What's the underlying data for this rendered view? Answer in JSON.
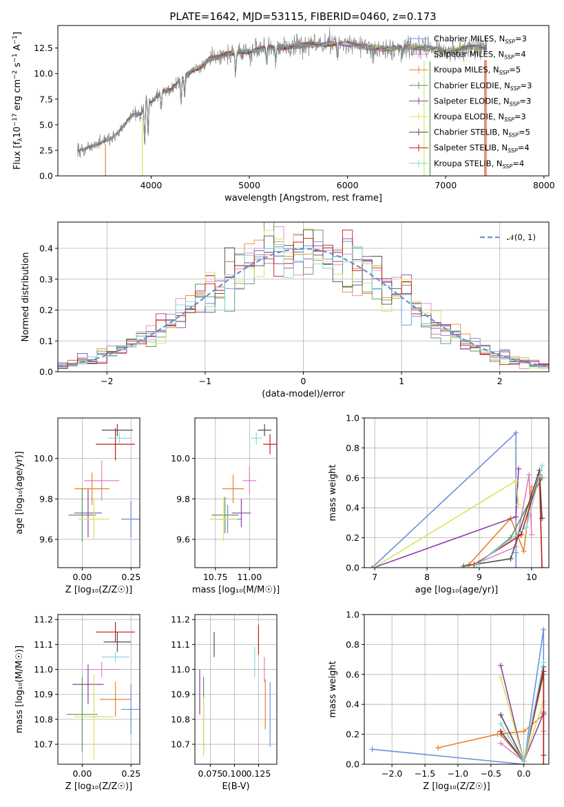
{
  "figure_title": "PLATE=1642, MJD=53115, FIBERID=0460, z=0.173",
  "chart_data": [
    {
      "id": "spectrum",
      "type": "line",
      "xlabel": "wavelength [Angstrom, rest frame]",
      "ylabel": "Flux [f_λ10^{-17} erg cm^{-2} s^{-1} A^{-1}]",
      "xlim": [
        3050,
        8050
      ],
      "ylim": [
        0,
        14.7
      ],
      "xticks": [
        4000,
        5000,
        6000,
        7000,
        8000
      ],
      "yticks": [
        0.0,
        2.5,
        5.0,
        7.5,
        10.0,
        12.5
      ],
      "grid": false,
      "legend_position": "top-right",
      "data_color": "#808080",
      "continuum": {
        "x": [
          3250,
          3400,
          3500,
          3600,
          3700,
          3800,
          3900,
          3950,
          4000,
          4100,
          4200,
          4300,
          4400,
          4500,
          4600,
          4700,
          4800,
          4900,
          5000,
          5200,
          5400,
          5600,
          5800,
          6000,
          6200,
          6400,
          6600,
          6800,
          7000,
          7200,
          7420
        ],
        "y": [
          2.4,
          2.9,
          3.3,
          3.7,
          4.6,
          5.9,
          6.1,
          7.6,
          7.2,
          8.2,
          8.4,
          9.4,
          10.2,
          10.6,
          11.5,
          11.6,
          12.0,
          12.2,
          12.1,
          12.6,
          12.6,
          12.8,
          12.9,
          12.9,
          12.6,
          12.4,
          12.6,
          12.5,
          12.2,
          12.5,
          12.6
        ]
      },
      "series": [
        {
          "name": "Chabrier MILES, N_{SSP}=3",
          "color": "#6a8fd8"
        },
        {
          "name": "Salpeter MILES, N_{SSP}=4",
          "color": "#e07fc2"
        },
        {
          "name": "Kroupa MILES, N_{SSP}=5",
          "color": "#e8812a"
        },
        {
          "name": "Chabrier ELODIE, N_{SSP}=3",
          "color": "#5e9160"
        },
        {
          "name": "Salpeter ELODIE, N_{SSP}=3",
          "color": "#8e3ea6"
        },
        {
          "name": "Kroupa ELODIE, N_{SSP}=3",
          "color": "#d4e45a"
        },
        {
          "name": "Chabrier STELIB, N_{SSP}=5",
          "color": "#4d4d4d"
        },
        {
          "name": "Salpeter STELIB, N_{SSP}=4",
          "color": "#c41818"
        },
        {
          "name": "Kroupa STELIB, N_{SSP}=4",
          "color": "#7fd8dc"
        }
      ]
    },
    {
      "id": "residuals",
      "type": "step-histogram",
      "xlabel": "(data-model)/error",
      "ylabel": "Normed distribution",
      "xlim": [
        -2.5,
        2.5
      ],
      "ylim": [
        0,
        0.485
      ],
      "xticks": [
        -2,
        -1,
        0,
        1,
        2
      ],
      "yticks": [
        0.0,
        0.1,
        0.2,
        0.3,
        0.4
      ],
      "grid": true,
      "legend_position": "top-right",
      "gaussian": {
        "name": "𝒩(0, 1)",
        "mu": 0,
        "sigma": 1,
        "color": "#6a8fd8"
      },
      "bin_width": 0.1
    },
    {
      "id": "age-vs-Z",
      "type": "errorbar",
      "xlabel": "Z [log₁₀(Z/Z☉)]",
      "ylabel": "age  [log₁₀(age/yr)]",
      "xlim": [
        -0.125,
        0.295
      ],
      "ylim": [
        9.46,
        10.2
      ],
      "xticks": [
        0.0,
        0.25
      ],
      "yticks": [
        9.6,
        9.8,
        10.0
      ],
      "grid": true,
      "points": [
        {
          "x": 0.25,
          "xerr": 0.05,
          "y": 9.7,
          "yerr": 0.09,
          "color": "#6a8fd8"
        },
        {
          "x": 0.1,
          "xerr": 0.09,
          "y": 9.89,
          "yerr": 0.1,
          "color": "#e07fc2"
        },
        {
          "x": 0.05,
          "xerr": 0.09,
          "y": 9.85,
          "yerr": 0.08,
          "color": "#e8812a"
        },
        {
          "x": 0.0,
          "xerr": 0.07,
          "y": 9.72,
          "yerr": 0.13,
          "color": "#5e9160"
        },
        {
          "x": 0.03,
          "xerr": 0.07,
          "y": 9.73,
          "yerr": 0.12,
          "color": "#8e3ea6"
        },
        {
          "x": 0.06,
          "xerr": 0.08,
          "y": 9.7,
          "yerr": 0.1,
          "color": "#d4e45a"
        },
        {
          "x": 0.18,
          "xerr": 0.08,
          "y": 10.14,
          "yerr": 0.03,
          "color": "#4d4d4d"
        },
        {
          "x": 0.17,
          "xerr": 0.1,
          "y": 10.07,
          "yerr": 0.08,
          "color": "#c41818"
        },
        {
          "x": 0.19,
          "xerr": 0.06,
          "y": 10.1,
          "yerr": 0.03,
          "color": "#7fd8dc"
        }
      ]
    },
    {
      "id": "age-vs-mass",
      "type": "errorbar",
      "xlabel": "mass [log₁₀(M/M☉)]",
      "ylabel": "",
      "xlim": [
        10.6,
        11.2
      ],
      "ylim": [
        9.46,
        10.2
      ],
      "xticks": [
        10.75,
        11.0
      ],
      "yticks": [
        9.6,
        9.8,
        10.0
      ],
      "grid": true,
      "points": [
        {
          "x": 10.84,
          "xerr": 0.1,
          "y": 9.7,
          "yerr": 0.07,
          "color": "#6a8fd8"
        },
        {
          "x": 11.0,
          "xerr": 0.05,
          "y": 9.89,
          "yerr": 0.07,
          "color": "#e07fc2"
        },
        {
          "x": 10.88,
          "xerr": 0.08,
          "y": 9.85,
          "yerr": 0.07,
          "color": "#e8812a"
        },
        {
          "x": 10.82,
          "xerr": 0.1,
          "y": 9.72,
          "yerr": 0.09,
          "color": "#5e9160"
        },
        {
          "x": 10.94,
          "xerr": 0.07,
          "y": 9.73,
          "yerr": 0.07,
          "color": "#8e3ea6"
        },
        {
          "x": 10.81,
          "xerr": 0.1,
          "y": 9.7,
          "yerr": 0.11,
          "color": "#d4e45a"
        },
        {
          "x": 11.11,
          "xerr": 0.05,
          "y": 10.14,
          "yerr": 0.03,
          "color": "#4d4d4d"
        },
        {
          "x": 11.15,
          "xerr": 0.05,
          "y": 10.07,
          "yerr": 0.05,
          "color": "#c41818"
        },
        {
          "x": 11.05,
          "xerr": 0.04,
          "y": 10.1,
          "yerr": 0.03,
          "color": "#7fd8dc"
        }
      ]
    },
    {
      "id": "weight-vs-age",
      "type": "line",
      "xlabel": "age  [log₁₀(age/yr)]",
      "ylabel": "mass weight",
      "xlim": [
        6.8,
        10.33
      ],
      "ylim": [
        0,
        1.0
      ],
      "xticks": [
        7,
        8,
        9,
        10
      ],
      "yticks": [
        0.0,
        0.2,
        0.4,
        0.6,
        0.8,
        1.0
      ],
      "grid": true,
      "series": [
        {
          "color": "#6a8fd8",
          "x": [
            6.95,
            9.7,
            9.7,
            9.7
          ],
          "y": [
            0.0,
            0.9,
            0.1,
            0.0
          ]
        },
        {
          "color": "#e07fc2",
          "x": [
            8.9,
            9.7,
            9.95,
            10.0
          ],
          "y": [
            0.02,
            0.14,
            0.62,
            0.22
          ]
        },
        {
          "color": "#e8812a",
          "x": [
            8.8,
            9.6,
            9.85,
            10.0
          ],
          "y": [
            0.02,
            0.33,
            0.11,
            0.54
          ]
        },
        {
          "color": "#5e9160",
          "x": [
            8.95,
            9.6,
            10.2
          ],
          "y": [
            0.02,
            0.2,
            0.6
          ]
        },
        {
          "color": "#8e3ea6",
          "x": [
            6.98,
            9.7,
            9.75
          ],
          "y": [
            0.0,
            0.34,
            0.66
          ]
        },
        {
          "color": "#d4e45a",
          "x": [
            6.98,
            9.7,
            9.75
          ],
          "y": [
            0.0,
            0.58,
            0.42
          ]
        },
        {
          "color": "#4d4d4d",
          "x": [
            8.7,
            9.6,
            10.15,
            10.2
          ],
          "y": [
            0.01,
            0.06,
            0.65,
            0.33
          ]
        },
        {
          "color": "#c41818",
          "x": [
            8.9,
            9.8,
            10.15,
            10.2
          ],
          "y": [
            0.02,
            0.22,
            0.62,
            0.0
          ]
        },
        {
          "color": "#7fd8dc",
          "x": [
            8.95,
            9.9,
            10.2
          ],
          "y": [
            0.02,
            0.27,
            0.68
          ]
        }
      ]
    },
    {
      "id": "mass-vs-Z",
      "type": "errorbar",
      "xlabel": "Z [log₁₀(Z/Z☉)]",
      "ylabel": "mass [log₁₀(M/M☉)]",
      "xlim": [
        -0.125,
        0.295
      ],
      "ylim": [
        10.62,
        11.22
      ],
      "xticks": [
        0.0,
        0.25
      ],
      "yticks": [
        10.7,
        10.8,
        10.9,
        11.0,
        11.1,
        11.2
      ],
      "grid": true,
      "points": [
        {
          "x": 0.25,
          "xerr": 0.05,
          "y": 10.84,
          "yerr": 0.1,
          "color": "#6a8fd8"
        },
        {
          "x": 0.1,
          "xerr": 0.09,
          "y": 11.0,
          "yerr": 0.03,
          "color": "#e07fc2"
        },
        {
          "x": 0.17,
          "xerr": 0.08,
          "y": 10.88,
          "yerr": 0.07,
          "color": "#e8812a"
        },
        {
          "x": 0.0,
          "xerr": 0.08,
          "y": 10.82,
          "yerr": 0.15,
          "color": "#5e9160"
        },
        {
          "x": 0.03,
          "xerr": 0.08,
          "y": 10.94,
          "yerr": 0.08,
          "color": "#8e3ea6"
        },
        {
          "x": 0.06,
          "xerr": 0.1,
          "y": 10.81,
          "yerr": 0.17,
          "color": "#d4e45a"
        },
        {
          "x": 0.18,
          "xerr": 0.07,
          "y": 11.11,
          "yerr": 0.04,
          "color": "#4d4d4d"
        },
        {
          "x": 0.17,
          "xerr": 0.1,
          "y": 11.15,
          "yerr": 0.04,
          "color": "#c41818"
        },
        {
          "x": 0.17,
          "xerr": 0.07,
          "y": 11.05,
          "yerr": 0.02,
          "color": "#7fd8dc"
        }
      ]
    },
    {
      "id": "mass-vs-EBV",
      "type": "errorbar",
      "xlabel": "E(B-V)",
      "ylabel": "",
      "xlim": [
        0.059,
        0.144
      ],
      "ylim": [
        10.62,
        11.22
      ],
      "xticks": [
        0.075,
        0.1,
        0.125
      ],
      "tick_labels": [
        "0.075",
        "0.100",
        "0.125"
      ],
      "yticks": [
        10.7,
        10.8,
        10.9,
        11.0,
        11.1,
        11.2
      ],
      "grid": true,
      "points": [
        {
          "x": 0.137,
          "xerr": 0,
          "y": 10.82,
          "yerr": 0.13,
          "color": "#6a8fd8"
        },
        {
          "x": 0.131,
          "xerr": 0,
          "y": 11.0,
          "yerr": 0.05,
          "color": "#e07fc2"
        },
        {
          "x": 0.132,
          "xerr": 0,
          "y": 10.86,
          "yerr": 0.1,
          "color": "#e8812a"
        },
        {
          "x": 0.068,
          "xerr": 0,
          "y": 10.82,
          "yerr": 0.15,
          "color": "#5e9160"
        },
        {
          "x": 0.064,
          "xerr": 0,
          "y": 10.91,
          "yerr": 0.09,
          "color": "#8e3ea6"
        },
        {
          "x": 0.068,
          "xerr": 0,
          "y": 10.77,
          "yerr": 0.12,
          "color": "#d4e45a"
        },
        {
          "x": 0.079,
          "xerr": 0,
          "y": 11.1,
          "yerr": 0.05,
          "color": "#4d4d4d"
        },
        {
          "x": 0.125,
          "xerr": 0,
          "y": 11.12,
          "yerr": 0.06,
          "color": "#c41818"
        },
        {
          "x": 0.121,
          "xerr": 0,
          "y": 11.03,
          "yerr": 0.06,
          "color": "#7fd8dc"
        }
      ]
    },
    {
      "id": "weight-vs-Z",
      "type": "line",
      "xlabel": "Z [log₁₀(Z/Z☉)]",
      "ylabel": "mass weight",
      "xlim": [
        -2.42,
        0.38
      ],
      "ylim": [
        0,
        1.0
      ],
      "xticks": [
        -2.0,
        -1.5,
        -1.0,
        -0.5,
        0.0
      ],
      "yticks": [
        0.0,
        0.2,
        0.4,
        0.6,
        0.8,
        1.0
      ],
      "grid": true,
      "series": [
        {
          "color": "#6a8fd8",
          "x": [
            -2.3,
            0.0,
            0.3,
            0.3
          ],
          "y": [
            0.1,
            0.0,
            0.9,
            0.35
          ]
        },
        {
          "color": "#e07fc2",
          "x": [
            -0.35,
            0.0,
            0.3,
            0.3
          ],
          "y": [
            0.14,
            0.02,
            0.62,
            0.22
          ]
        },
        {
          "color": "#e8812a",
          "x": [
            -1.3,
            -0.4,
            0.0,
            0.3
          ],
          "y": [
            0.11,
            0.2,
            0.22,
            0.33
          ]
        },
        {
          "color": "#5e9160",
          "x": [
            -0.35,
            0.0,
            0.3
          ],
          "y": [
            0.2,
            0.02,
            0.6
          ]
        },
        {
          "color": "#8e3ea6",
          "x": [
            -0.35,
            0.0,
            0.3
          ],
          "y": [
            0.66,
            0.02,
            0.34
          ]
        },
        {
          "color": "#d4e45a",
          "x": [
            -0.35,
            0.0,
            0.3
          ],
          "y": [
            0.58,
            0.02,
            0.42
          ]
        },
        {
          "color": "#4d4d4d",
          "x": [
            -0.35,
            0.0,
            0.3,
            0.3
          ],
          "y": [
            0.33,
            0.02,
            0.65,
            0.06
          ]
        },
        {
          "color": "#c41818",
          "x": [
            -0.35,
            0.0,
            0.3,
            0.3
          ],
          "y": [
            0.22,
            0.02,
            0.62,
            0.0
          ]
        },
        {
          "color": "#7fd8dc",
          "x": [
            -0.35,
            0.0,
            0.3
          ],
          "y": [
            0.27,
            0.02,
            0.68
          ]
        }
      ]
    }
  ]
}
